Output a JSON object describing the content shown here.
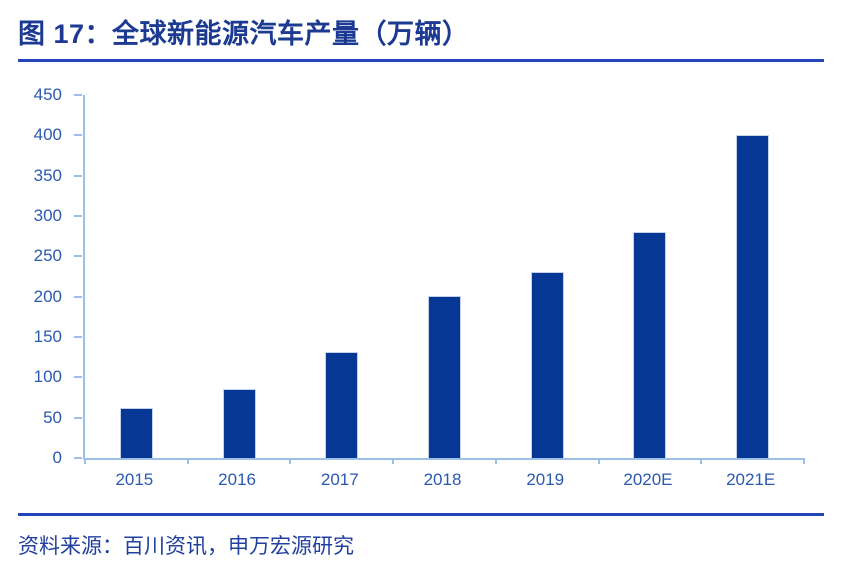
{
  "figure": {
    "title": "图 17：全球新能源汽车产量（万辆）",
    "source": "资料来源：百川资讯，申万宏源研究"
  },
  "colors": {
    "title": "#1c3a92",
    "rule": "#2444bc",
    "axis": "#9cc0e8",
    "tick_label": "#2b58b2",
    "bar": "#073795",
    "bar_border": "#c6d2ec",
    "source_text": "#21409f"
  },
  "chart_data": {
    "type": "bar",
    "title": "全球新能源汽车产量（万辆）",
    "categories": [
      "2015",
      "2016",
      "2017",
      "2018",
      "2019",
      "2020E",
      "2021E"
    ],
    "values": [
      62,
      86,
      131,
      201,
      230,
      280,
      400
    ],
    "xlabel": "",
    "ylabel": "",
    "ylim": [
      0,
      450
    ],
    "yticks": [
      0,
      50,
      100,
      150,
      200,
      250,
      300,
      350,
      400,
      450
    ],
    "grid": false,
    "legend": false,
    "bar_color": "#073795"
  }
}
